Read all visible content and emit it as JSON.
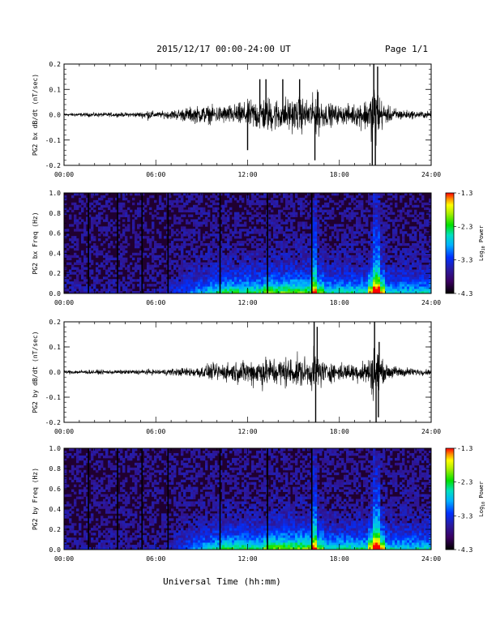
{
  "header": {
    "title": "2015/12/17  00:00-24:00 UT",
    "page": "Page 1/1"
  },
  "footer": {
    "xlabel": "Universal Time (hh:mm)"
  },
  "colorbar_labels": {
    "title_prefix": "Log",
    "title_sub": "10",
    "title_suffix": " Power"
  },
  "chart_data": [
    {
      "type": "line",
      "ylabel": "PG2 bx dB/dt (nT/sec)",
      "xlim": [
        0,
        24
      ],
      "ylim": [
        -0.2,
        0.2
      ],
      "xticks": [
        "00:00",
        "06:00",
        "12:00",
        "18:00",
        "24:00"
      ],
      "yticks": [
        {
          "value": -0.2,
          "label": "-0.2"
        },
        {
          "value": -0.1,
          "label": "-0.1"
        },
        {
          "value": 0.0,
          "label": "0.0"
        },
        {
          "value": 0.1,
          "label": "0.1"
        },
        {
          "value": 0.2,
          "label": "0.2"
        }
      ],
      "envelope": {
        "x": [
          0,
          1,
          2,
          3,
          4,
          5,
          5.5,
          6,
          6.5,
          7,
          8,
          9,
          10,
          11,
          12,
          12.5,
          13,
          13.5,
          14,
          14.5,
          15,
          15.5,
          16,
          16.5,
          17,
          18,
          19,
          20,
          20.3,
          20.6,
          21,
          22,
          23,
          24
        ],
        "y": [
          0.01,
          0.01,
          0.012,
          0.012,
          0.012,
          0.015,
          0.03,
          0.015,
          0.02,
          0.025,
          0.04,
          0.05,
          0.05,
          0.055,
          0.075,
          0.09,
          0.1,
          0.1,
          0.09,
          0.1,
          0.09,
          0.1,
          0.08,
          0.13,
          0.07,
          0.05,
          0.06,
          0.1,
          0.2,
          0.12,
          0.05,
          0.03,
          0.02,
          0.02
        ]
      },
      "spikes": [
        {
          "x": 12.0,
          "y": -0.14
        },
        {
          "x": 12.8,
          "y": 0.14
        },
        {
          "x": 13.2,
          "y": 0.14
        },
        {
          "x": 14.3,
          "y": 0.14
        },
        {
          "x": 15.4,
          "y": 0.14
        },
        {
          "x": 16.4,
          "y": -0.18
        },
        {
          "x": 16.6,
          "y": 0.09
        },
        {
          "x": 20.25,
          "y": 0.21
        },
        {
          "x": 20.35,
          "y": -0.22
        },
        {
          "x": 20.5,
          "y": 0.19
        },
        {
          "x": 20.15,
          "y": -0.2
        }
      ]
    },
    {
      "type": "heatmap",
      "ylabel": "PG2 bx Freq (Hz)",
      "xlim": [
        0,
        24
      ],
      "ylim": [
        0,
        1
      ],
      "xticks": [
        "00:00",
        "06:00",
        "12:00",
        "18:00",
        "24:00"
      ],
      "yticks": [
        {
          "value": 0.0,
          "label": "0.0"
        },
        {
          "value": 0.2,
          "label": "0.2"
        },
        {
          "value": 0.4,
          "label": "0.4"
        },
        {
          "value": 0.6,
          "label": "0.6"
        },
        {
          "value": 0.8,
          "label": "0.8"
        },
        {
          "value": 1.0,
          "label": "1.0"
        }
      ],
      "colorbar": {
        "min": -4.3,
        "max": -1.3,
        "ticks": [
          "-1.3",
          "-2.3",
          "-3.3",
          "-4.3"
        ]
      },
      "gap_lines_hours": [
        1.6,
        3.5,
        5.1,
        6.8,
        10.2,
        13.3,
        16.2
      ],
      "bright_columns_hours": [
        16.4,
        20.3,
        20.5
      ]
    },
    {
      "type": "line",
      "ylabel": "PG2 by dB/dt (nT/sec)",
      "xlim": [
        0,
        24
      ],
      "ylim": [
        -0.2,
        0.2
      ],
      "xticks": [
        "00:00",
        "06:00",
        "12:00",
        "18:00",
        "24:00"
      ],
      "yticks": [
        {
          "value": -0.2,
          "label": "-0.2"
        },
        {
          "value": -0.1,
          "label": "-0.1"
        },
        {
          "value": 0.0,
          "label": "0.0"
        },
        {
          "value": 0.1,
          "label": "0.1"
        },
        {
          "value": 0.2,
          "label": "0.2"
        }
      ],
      "envelope": {
        "x": [
          0,
          1,
          2,
          3,
          4,
          5,
          6,
          7,
          8,
          9,
          10,
          11,
          12,
          12.5,
          13,
          13.5,
          14,
          14.5,
          15,
          15.5,
          16,
          16.5,
          17,
          18,
          19,
          20,
          20.3,
          20.6,
          21,
          22,
          23,
          24
        ],
        "y": [
          0.01,
          0.012,
          0.012,
          0.012,
          0.012,
          0.015,
          0.015,
          0.02,
          0.025,
          0.035,
          0.05,
          0.055,
          0.07,
          0.08,
          0.09,
          0.08,
          0.08,
          0.09,
          0.08,
          0.09,
          0.07,
          0.13,
          0.06,
          0.05,
          0.05,
          0.08,
          0.18,
          0.1,
          0.04,
          0.03,
          0.02,
          0.015
        ]
      },
      "spikes": [
        {
          "x": 16.35,
          "y": 0.21
        },
        {
          "x": 16.45,
          "y": -0.21
        },
        {
          "x": 16.55,
          "y": 0.18
        },
        {
          "x": 20.3,
          "y": 0.21
        },
        {
          "x": 20.4,
          "y": -0.21
        },
        {
          "x": 20.55,
          "y": -0.18
        },
        {
          "x": 20.6,
          "y": 0.12
        }
      ]
    },
    {
      "type": "heatmap",
      "ylabel": "PG2 by Freq (Hz)",
      "xlim": [
        0,
        24
      ],
      "ylim": [
        0,
        1
      ],
      "xticks": [
        "00:00",
        "06:00",
        "12:00",
        "18:00",
        "24:00"
      ],
      "yticks": [
        {
          "value": 0.0,
          "label": "0.0"
        },
        {
          "value": 0.2,
          "label": "0.2"
        },
        {
          "value": 0.4,
          "label": "0.4"
        },
        {
          "value": 0.6,
          "label": "0.6"
        },
        {
          "value": 0.8,
          "label": "0.8"
        },
        {
          "value": 1.0,
          "label": "1.0"
        }
      ],
      "colorbar": {
        "min": -4.3,
        "max": -1.3,
        "ticks": [
          "-1.3",
          "-2.3",
          "-3.3",
          "-4.3"
        ]
      },
      "gap_lines_hours": [
        1.6,
        3.5,
        5.1,
        6.8,
        10.2,
        13.3,
        16.2
      ],
      "bright_columns_hours": [
        16.4,
        20.3,
        20.5
      ]
    }
  ]
}
